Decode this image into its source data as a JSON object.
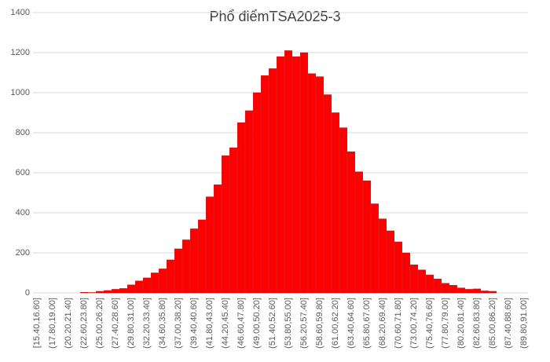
{
  "chart_data": {
    "type": "bar",
    "title": "Phổ điểmTSA2025-3",
    "categories": [
      "[15.40,16.60]",
      null,
      "(17.80,19.00]",
      null,
      "(20.20,21.40]",
      null,
      "(22.60,23.80]",
      null,
      "(25.00,26.20]",
      null,
      "(27.40,28.60]",
      null,
      "(29.80,31.00]",
      null,
      "(32.20,33.40]",
      null,
      "(34.60,35.80]",
      null,
      "(37.00,38.20]",
      null,
      "(39.40,40.60]",
      null,
      "(41.80,43.00]",
      null,
      "(44.20,45.40]",
      null,
      "(46.60,47.80]",
      null,
      "(49.00,50.20]",
      null,
      "(51.40,52.60]",
      null,
      "(53.80,55.00]",
      null,
      "(56.20,57.40]",
      null,
      "(58.60,59.80]",
      null,
      "(61.00,62.20]",
      null,
      "(63.40,64.60]",
      null,
      "(65.80,67.00]",
      null,
      "(68.20,69.40]",
      null,
      "(70.60,71.80]",
      null,
      "(73.00,74.20]",
      null,
      "(75.40,76.60]",
      null,
      "(77.80,79.00]",
      null,
      "(80.20,81.40]",
      null,
      "(82.60,83.80]",
      null,
      "(85.00,86.20]",
      null,
      "(87.40,88.60]",
      null,
      "(89.80,91.00]"
    ],
    "values": [
      0,
      0,
      0,
      0,
      0,
      0,
      3,
      2,
      8,
      12,
      18,
      22,
      40,
      60,
      75,
      100,
      120,
      165,
      220,
      265,
      320,
      365,
      480,
      540,
      685,
      725,
      850,
      910,
      1000,
      1085,
      1120,
      1180,
      1210,
      1180,
      1200,
      1095,
      1080,
      990,
      900,
      825,
      705,
      605,
      560,
      445,
      370,
      310,
      255,
      200,
      140,
      115,
      90,
      70,
      48,
      38,
      25,
      18,
      20,
      10,
      8,
      0,
      0,
      0,
      0
    ],
    "color": "#ff0000",
    "ylim": [
      0,
      1400
    ],
    "yticks": [
      0,
      200,
      400,
      600,
      800,
      1000,
      1200,
      1400
    ],
    "grid": true
  }
}
